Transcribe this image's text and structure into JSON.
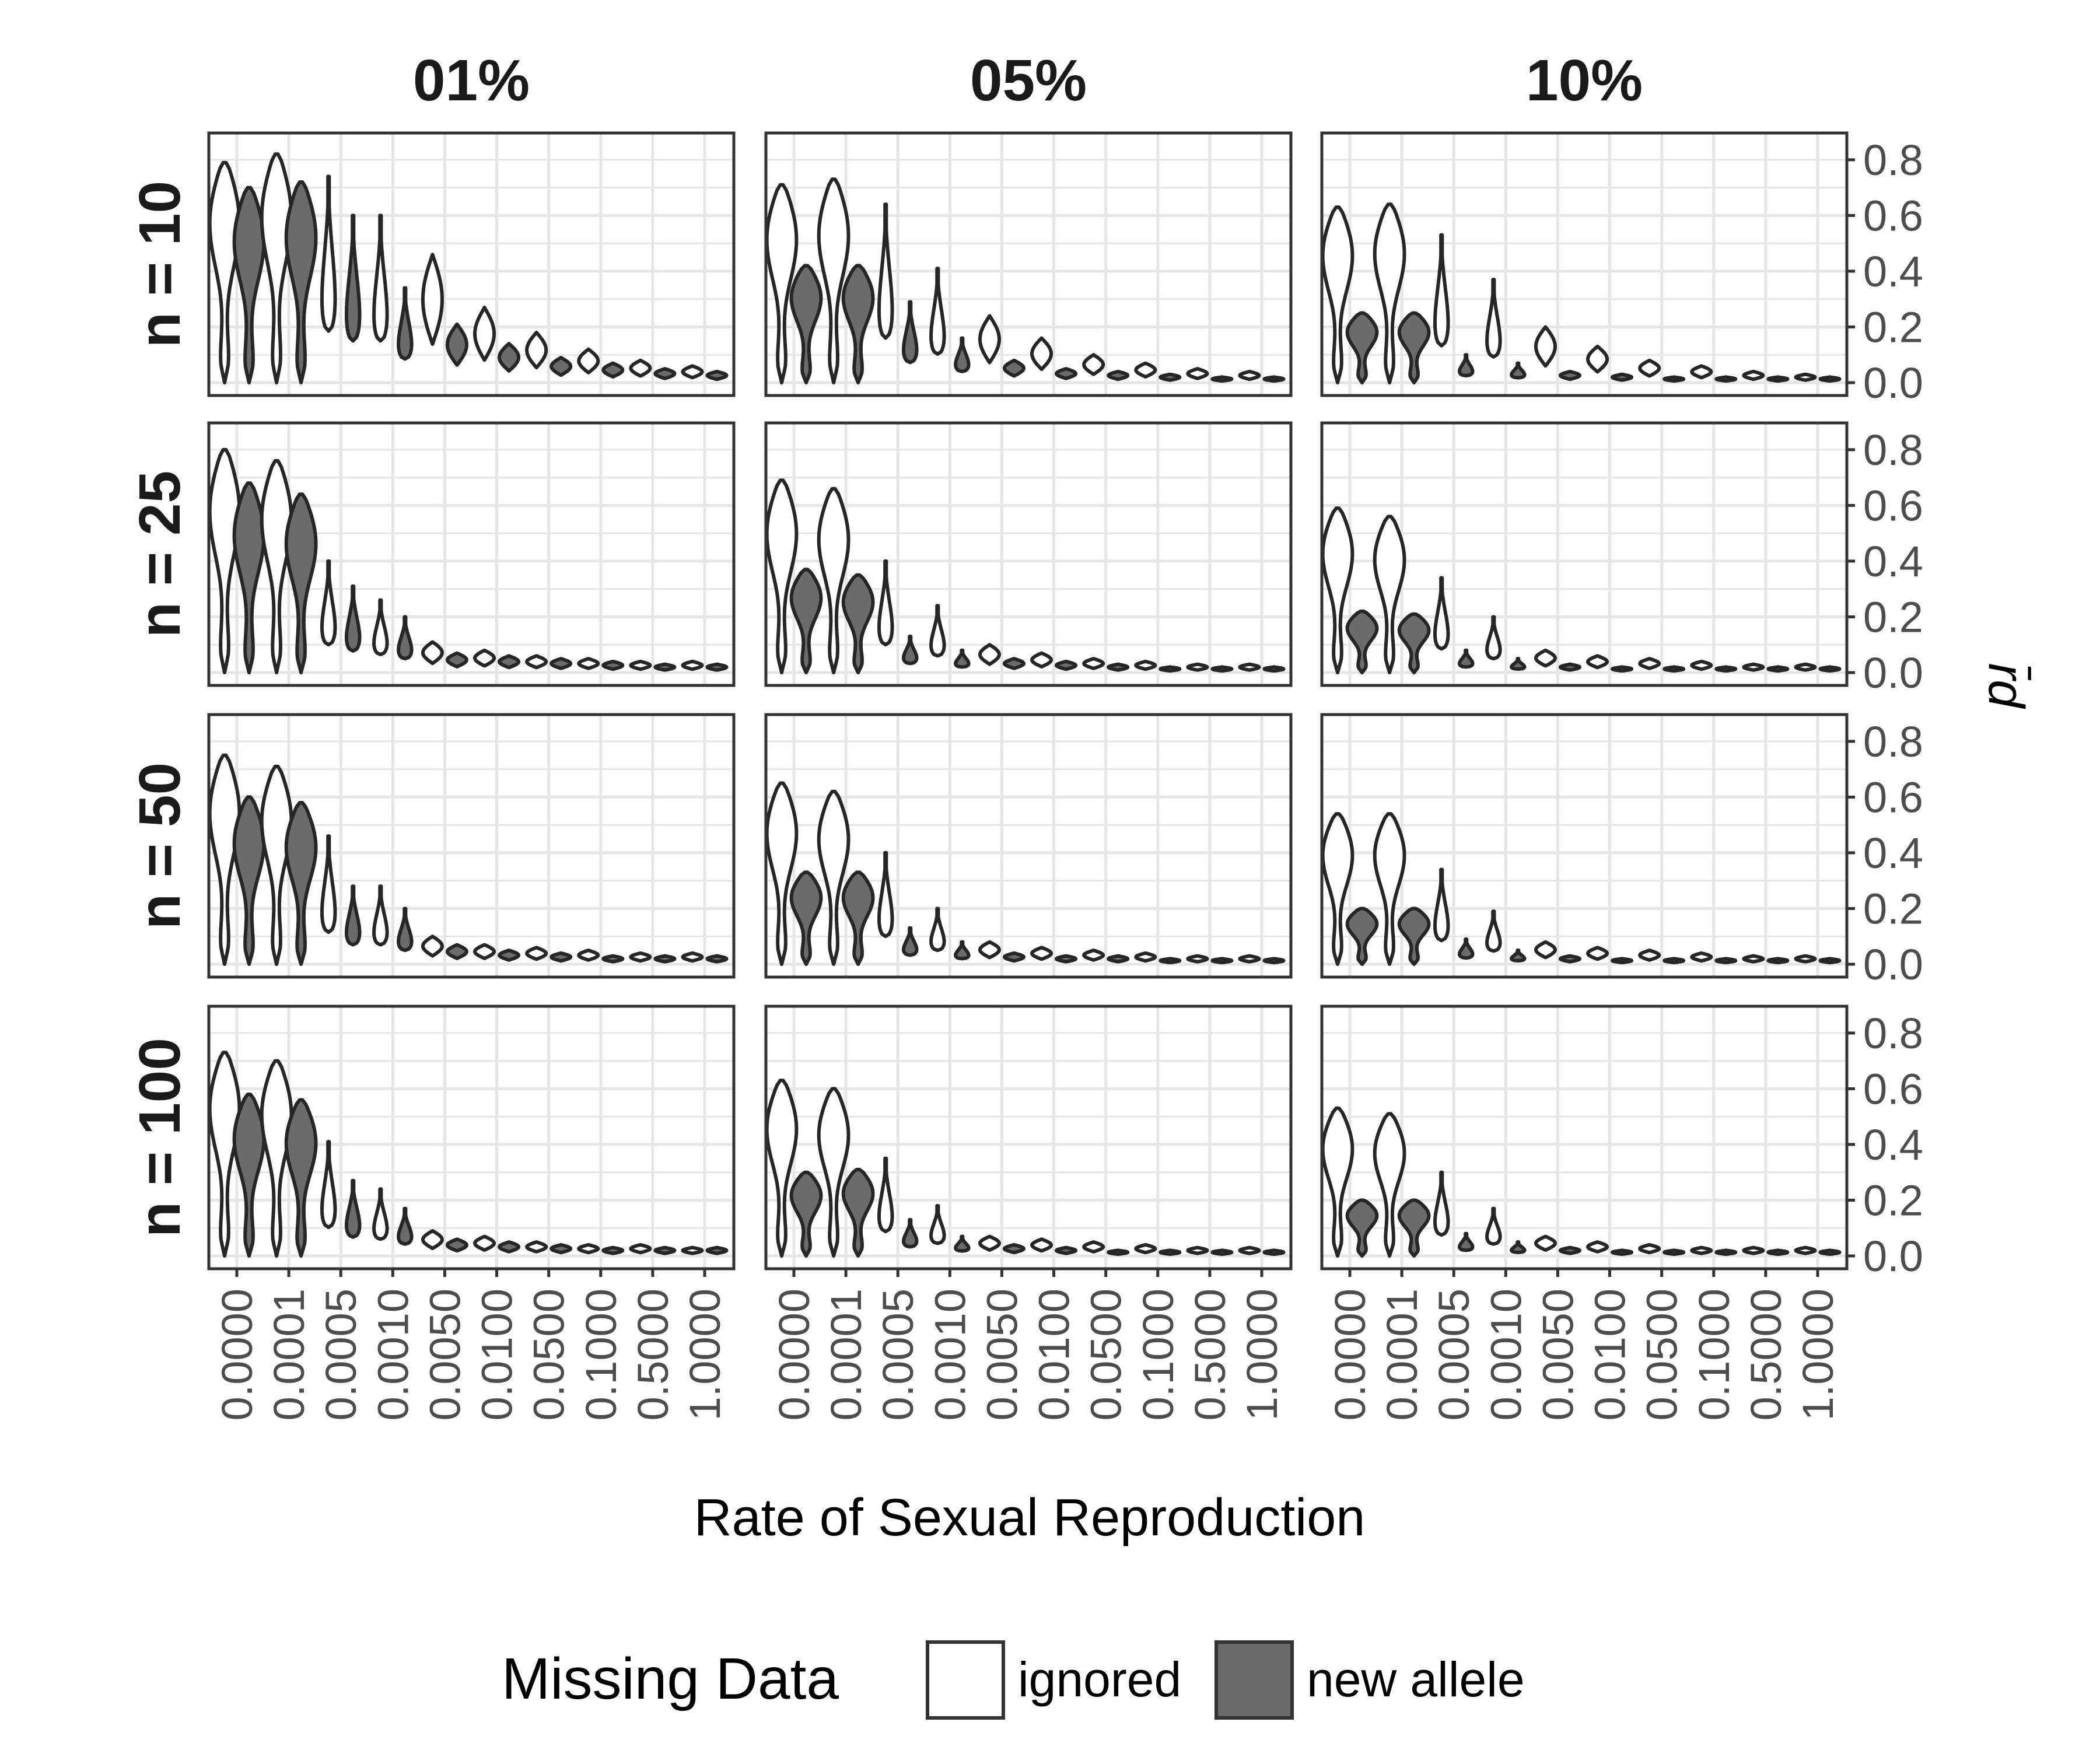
{
  "chart_data": {
    "type": "violin",
    "xlabel": "Rate of Sexual Reproduction",
    "ylabel": "r̄d",
    "ylim": [
      0,
      0.85
    ],
    "y_ticks": [
      "0.0",
      "0.2",
      "0.4",
      "0.6",
      "0.8"
    ],
    "categories": [
      "0.0000",
      "0.0001",
      "0.0005",
      "0.0010",
      "0.0050",
      "0.0100",
      "0.0500",
      "0.1000",
      "0.5000",
      "1.0000"
    ],
    "grid": true,
    "col_facets": [
      "01%",
      "05%",
      "10%"
    ],
    "row_facets": [
      "n = 10",
      "n = 25",
      "n = 50",
      "n = 100"
    ],
    "legend": {
      "title": "Missing Data",
      "position": "bottom",
      "items": [
        {
          "label": "ignored",
          "color": "#ffffff"
        },
        {
          "label": "new allele",
          "color": "#6b6b6b"
        }
      ]
    },
    "series": [
      {
        "name": "ignored",
        "color": "#ffffff"
      },
      {
        "name": "new allele",
        "color": "#6b6b6b"
      }
    ],
    "panels": [
      {
        "col": 0,
        "row": 0,
        "ignored_max": [
          0.79,
          0.82,
          0.74,
          0.6,
          0.46,
          0.27,
          0.18,
          0.12,
          0.08,
          0.06
        ],
        "new_allele_max": [
          0.7,
          0.72,
          0.6,
          0.34,
          0.21,
          0.14,
          0.09,
          0.07,
          0.05,
          0.04
        ]
      },
      {
        "col": 1,
        "row": 0,
        "ignored_max": [
          0.71,
          0.73,
          0.64,
          0.41,
          0.24,
          0.16,
          0.1,
          0.07,
          0.05,
          0.04
        ],
        "new_allele_max": [
          0.42,
          0.42,
          0.29,
          0.16,
          0.08,
          0.05,
          0.04,
          0.03,
          0.02,
          0.02
        ]
      },
      {
        "col": 2,
        "row": 0,
        "ignored_max": [
          0.63,
          0.64,
          0.53,
          0.37,
          0.2,
          0.13,
          0.08,
          0.06,
          0.04,
          0.03
        ],
        "new_allele_max": [
          0.25,
          0.25,
          0.1,
          0.07,
          0.04,
          0.03,
          0.02,
          0.02,
          0.02,
          0.02
        ]
      },
      {
        "col": 0,
        "row": 1,
        "ignored_max": [
          0.8,
          0.76,
          0.4,
          0.26,
          0.11,
          0.08,
          0.06,
          0.05,
          0.04,
          0.04
        ],
        "new_allele_max": [
          0.68,
          0.64,
          0.31,
          0.2,
          0.07,
          0.06,
          0.05,
          0.04,
          0.03,
          0.03
        ]
      },
      {
        "col": 1,
        "row": 1,
        "ignored_max": [
          0.69,
          0.66,
          0.4,
          0.24,
          0.1,
          0.07,
          0.05,
          0.04,
          0.03,
          0.03
        ],
        "new_allele_max": [
          0.37,
          0.35,
          0.13,
          0.08,
          0.05,
          0.04,
          0.03,
          0.02,
          0.02,
          0.02
        ]
      },
      {
        "col": 2,
        "row": 1,
        "ignored_max": [
          0.59,
          0.56,
          0.34,
          0.2,
          0.08,
          0.06,
          0.05,
          0.04,
          0.03,
          0.03
        ],
        "new_allele_max": [
          0.22,
          0.21,
          0.08,
          0.05,
          0.03,
          0.02,
          0.02,
          0.02,
          0.02,
          0.02
        ]
      },
      {
        "col": 0,
        "row": 2,
        "ignored_max": [
          0.75,
          0.71,
          0.46,
          0.28,
          0.1,
          0.07,
          0.06,
          0.05,
          0.04,
          0.04
        ],
        "new_allele_max": [
          0.6,
          0.58,
          0.28,
          0.2,
          0.07,
          0.05,
          0.04,
          0.03,
          0.03,
          0.03
        ]
      },
      {
        "col": 1,
        "row": 2,
        "ignored_max": [
          0.65,
          0.62,
          0.4,
          0.2,
          0.08,
          0.06,
          0.05,
          0.04,
          0.03,
          0.03
        ],
        "new_allele_max": [
          0.33,
          0.33,
          0.13,
          0.08,
          0.04,
          0.03,
          0.03,
          0.02,
          0.02,
          0.02
        ]
      },
      {
        "col": 2,
        "row": 2,
        "ignored_max": [
          0.54,
          0.54,
          0.34,
          0.19,
          0.08,
          0.06,
          0.05,
          0.04,
          0.03,
          0.03
        ],
        "new_allele_max": [
          0.2,
          0.2,
          0.09,
          0.05,
          0.03,
          0.02,
          0.02,
          0.02,
          0.02,
          0.02
        ]
      },
      {
        "col": 0,
        "row": 3,
        "ignored_max": [
          0.73,
          0.7,
          0.41,
          0.24,
          0.09,
          0.07,
          0.05,
          0.04,
          0.04,
          0.03
        ],
        "new_allele_max": [
          0.58,
          0.56,
          0.27,
          0.17,
          0.06,
          0.05,
          0.04,
          0.03,
          0.03,
          0.03
        ]
      },
      {
        "col": 1,
        "row": 3,
        "ignored_max": [
          0.63,
          0.6,
          0.35,
          0.18,
          0.07,
          0.06,
          0.05,
          0.04,
          0.03,
          0.03
        ],
        "new_allele_max": [
          0.3,
          0.31,
          0.13,
          0.07,
          0.04,
          0.03,
          0.02,
          0.02,
          0.02,
          0.02
        ]
      },
      {
        "col": 2,
        "row": 3,
        "ignored_max": [
          0.53,
          0.51,
          0.3,
          0.17,
          0.07,
          0.05,
          0.04,
          0.03,
          0.03,
          0.03
        ],
        "new_allele_max": [
          0.2,
          0.2,
          0.08,
          0.05,
          0.03,
          0.02,
          0.02,
          0.02,
          0.02,
          0.02
        ]
      }
    ]
  }
}
